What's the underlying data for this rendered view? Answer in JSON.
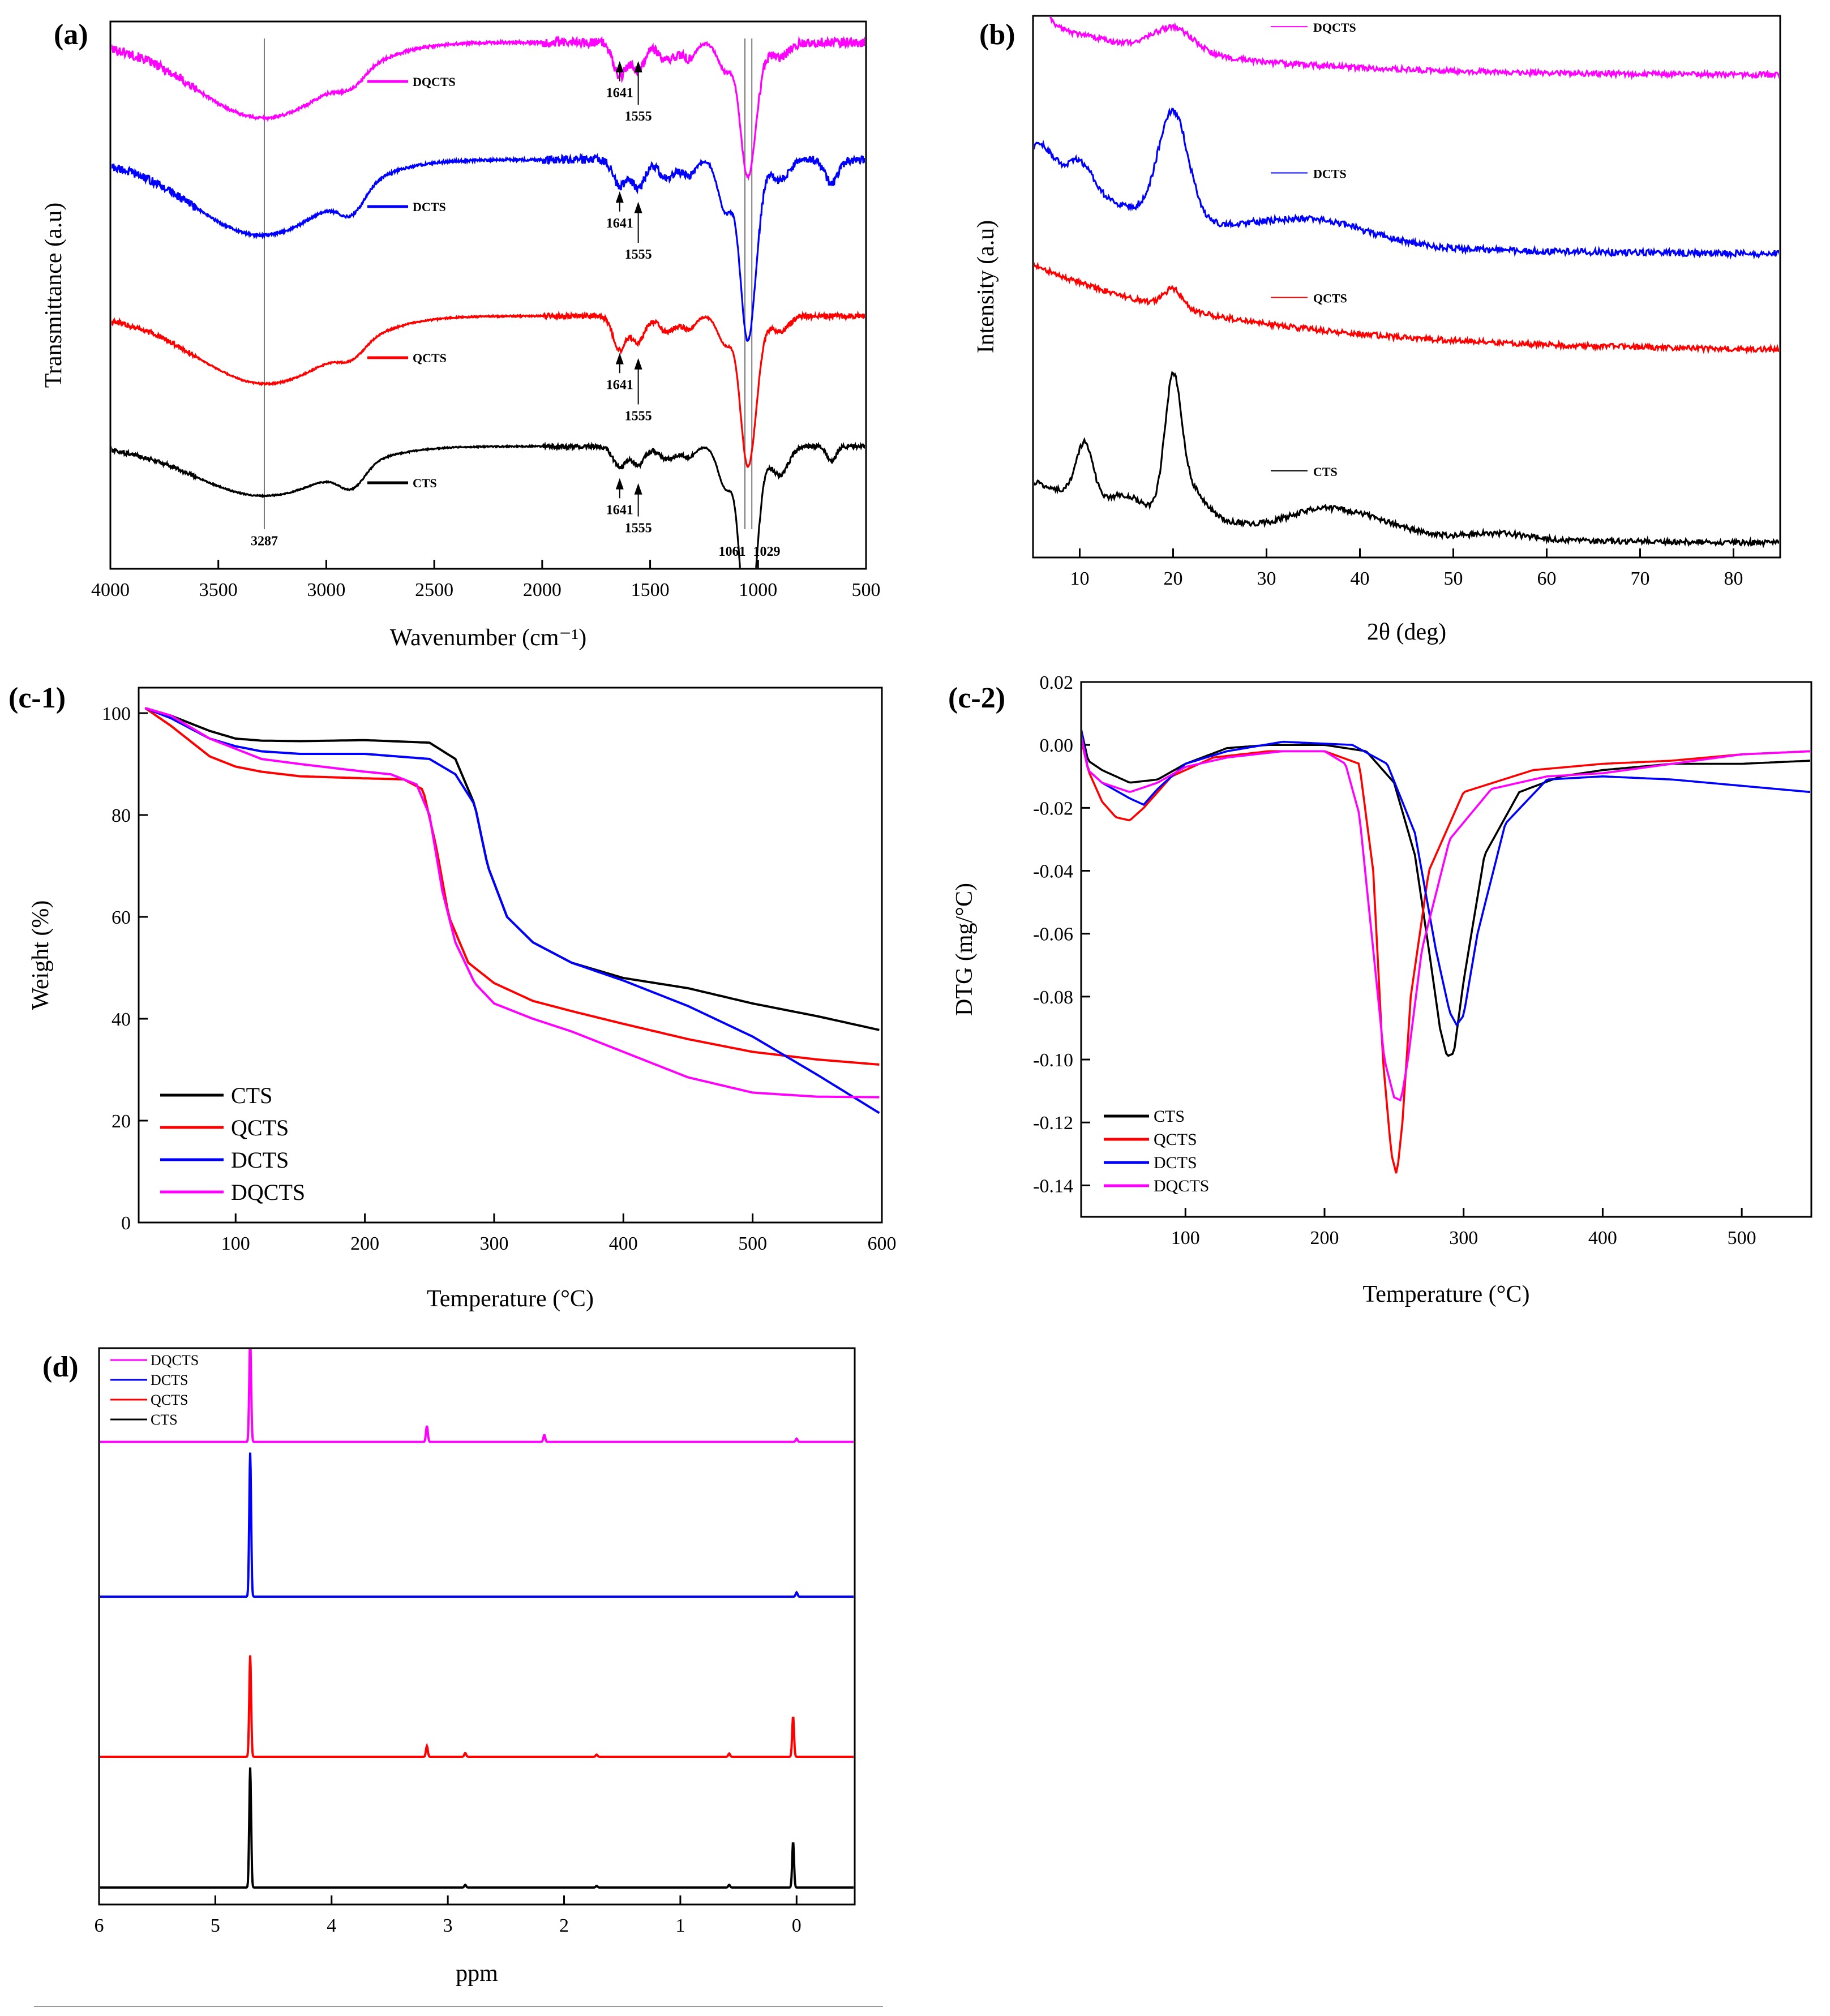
{
  "colors": {
    "CTS": "#000000",
    "QCTS": "#ff0000",
    "DCTS": "#0000ff",
    "DQCTS": "#ff00ff"
  },
  "chart_data": [
    {
      "id": "a",
      "panel_label": "(a)",
      "type": "line",
      "xlabel": "Wavenumber (cm⁻¹)",
      "ylabel": "Transmittance (a.u)",
      "xlim": [
        4000,
        500
      ],
      "ylim": [
        0,
        10.5
      ],
      "x_reversed": true,
      "xticks": [
        4000,
        3500,
        3000,
        2500,
        2000,
        1500,
        1000,
        500
      ],
      "legend_names": [
        "DQCTS",
        "DCTS",
        "QCTS",
        "CTS"
      ],
      "legend_positions": [
        {
          "name": "DQCTS",
          "x": 2600,
          "y": 9.35
        },
        {
          "name": "DCTS",
          "x": 2600,
          "y": 6.95
        },
        {
          "name": "QCTS",
          "x": 2600,
          "y": 4.05
        },
        {
          "name": "CTS",
          "x": 2600,
          "y": 1.65
        }
      ],
      "series": [
        {
          "name": "DQCTS",
          "baseline": 10.1,
          "noise": 0.09,
          "bands": [
            [
              3290,
              320,
              1.45
            ],
            [
              2880,
              60,
              0.25
            ],
            [
              1641,
              30,
              0.65
            ],
            [
              1555,
              30,
              0.55
            ],
            [
              1420,
              40,
              0.35
            ],
            [
              1320,
              30,
              0.3
            ],
            [
              1150,
              35,
              0.55
            ],
            [
              1061,
              30,
              1.4
            ],
            [
              1029,
              35,
              1.5
            ],
            [
              900,
              40,
              0.3
            ]
          ]
        },
        {
          "name": "DCTS",
          "baseline": 7.85,
          "noise": 0.08,
          "bands": [
            [
              3300,
              320,
              1.45
            ],
            [
              2880,
              60,
              0.45
            ],
            [
              1641,
              30,
              0.5
            ],
            [
              1555,
              30,
              0.55
            ],
            [
              1420,
              40,
              0.35
            ],
            [
              1320,
              30,
              0.3
            ],
            [
              1150,
              35,
              1.0
            ],
            [
              1061,
              30,
              1.9
            ],
            [
              1029,
              35,
              2.0
            ],
            [
              900,
              40,
              0.4
            ],
            [
              660,
              30,
              0.45
            ]
          ]
        },
        {
          "name": "QCTS",
          "baseline": 4.85,
          "noise": 0.05,
          "bands": [
            [
              3280,
              320,
              1.3
            ],
            [
              2880,
              60,
              0.25
            ],
            [
              1641,
              30,
              0.65
            ],
            [
              1555,
              30,
              0.5
            ],
            [
              1420,
              40,
              0.3
            ],
            [
              1320,
              30,
              0.25
            ],
            [
              1150,
              35,
              0.55
            ],
            [
              1061,
              30,
              1.5
            ],
            [
              1029,
              35,
              1.75
            ],
            [
              900,
              40,
              0.3
            ]
          ]
        },
        {
          "name": "CTS",
          "baseline": 2.35,
          "noise": 0.04,
          "bands": [
            [
              3290,
              320,
              0.95
            ],
            [
              2880,
              60,
              0.4
            ],
            [
              1641,
              30,
              0.4
            ],
            [
              1555,
              30,
              0.35
            ],
            [
              1420,
              40,
              0.25
            ],
            [
              1320,
              30,
              0.2
            ],
            [
              1150,
              35,
              0.8
            ],
            [
              1061,
              30,
              2.1
            ],
            [
              1029,
              35,
              2.15
            ],
            [
              900,
              40,
              0.55
            ],
            [
              660,
              20,
              0.3
            ]
          ]
        }
      ],
      "vlines": [
        3287,
        1061,
        1029
      ],
      "annotations": [
        {
          "text": "1641",
          "x": 1641,
          "y": 9.05,
          "arrow_to": 9.72
        },
        {
          "text": "1555",
          "x": 1555,
          "y": 8.6,
          "arrow_to": 9.72
        },
        {
          "text": "1641",
          "x": 1641,
          "y": 6.55,
          "arrow_to": 7.22
        },
        {
          "text": "1555",
          "x": 1555,
          "y": 5.95,
          "arrow_to": 7.02
        },
        {
          "text": "1641",
          "x": 1641,
          "y": 3.45,
          "arrow_to": 4.12
        },
        {
          "text": "1555",
          "x": 1555,
          "y": 2.85,
          "arrow_to": 4.02
        },
        {
          "text": "1641",
          "x": 1641,
          "y": 1.05,
          "arrow_to": 1.72
        },
        {
          "text": "1555",
          "x": 1555,
          "y": 0.7,
          "arrow_to": 1.62
        },
        {
          "text": "3287",
          "x": 3287,
          "y": 0.45
        },
        {
          "text": "1061",
          "x": 1120,
          "y": 0.25
        },
        {
          "text": "1029",
          "x": 960,
          "y": 0.25
        }
      ]
    },
    {
      "id": "b",
      "panel_label": "(b)",
      "type": "line",
      "xlabel": "2θ (deg)",
      "ylabel": "Intensity (a.u)",
      "xlim": [
        5,
        85
      ],
      "ylim": [
        0,
        10
      ],
      "xticks": [
        10,
        20,
        30,
        40,
        50,
        60,
        70,
        80
      ],
      "legend_names": [
        "DQCTS",
        "DCTS",
        "QCTS",
        "CTS"
      ],
      "legend_positions": [
        {
          "name": "DQCTS",
          "x": 35,
          "y": 9.8
        },
        {
          "name": "DCTS",
          "x": 35,
          "y": 7.1
        },
        {
          "name": "QCTS",
          "x": 35,
          "y": 4.8
        },
        {
          "name": "CTS",
          "x": 35,
          "y": 1.6
        }
      ],
      "series": [
        {
          "name": "DQCTS",
          "noise": 0.05,
          "decay": [
            8.9,
            1.0,
            18
          ],
          "peaks": [
            [
              20,
              2.2,
              0.45
            ],
            [
              5,
              1.2,
              0.55
            ]
          ]
        },
        {
          "name": "DCTS",
          "noise": 0.06,
          "decay": [
            5.6,
            1.6,
            16
          ],
          "peaks": [
            [
              10,
              1.5,
              0.55
            ],
            [
              20,
              1.6,
              2.0
            ],
            [
              35,
              6,
              0.4
            ],
            [
              6,
              1.2,
              0.5
            ]
          ]
        },
        {
          "name": "QCTS",
          "noise": 0.05,
          "decay": [
            3.8,
            1.6,
            22
          ],
          "peaks": [
            [
              20,
              1.0,
              0.35
            ]
          ]
        },
        {
          "name": "CTS",
          "noise": 0.05,
          "decay": [
            0.25,
            1.15,
            20
          ],
          "peaks": [
            [
              10.5,
              0.9,
              1.0
            ],
            [
              15,
              1.5,
              0.2
            ],
            [
              20,
              0.9,
              2.4
            ],
            [
              22,
              1.5,
              0.5
            ],
            [
              35,
              3,
              0.25
            ],
            [
              40,
              4,
              0.3
            ],
            [
              55,
              3,
              0.1
            ]
          ]
        }
      ]
    },
    {
      "id": "c1",
      "panel_label": "(c-1)",
      "type": "line",
      "xlabel": "Temperature (°C)",
      "ylabel": "Weight (%)",
      "xlim": [
        25,
        600
      ],
      "ylim": [
        0,
        105
      ],
      "xticks": [
        100,
        200,
        300,
        400,
        500,
        600
      ],
      "yticks": [
        0,
        20,
        40,
        60,
        80,
        100
      ],
      "legend_names": [
        "CTS",
        "QCTS",
        "DCTS",
        "DQCTS"
      ],
      "series": [
        {
          "name": "CTS",
          "x": [
            30,
            50,
            80,
            100,
            120,
            150,
            200,
            250,
            270,
            285,
            295,
            310,
            330,
            360,
            400,
            450,
            500,
            550,
            598
          ],
          "y": [
            101,
            99.5,
            96.5,
            95,
            94.6,
            94.5,
            94.7,
            94.2,
            91,
            82,
            70,
            60,
            55,
            51,
            48,
            46,
            43,
            40.5,
            37.8
          ]
        },
        {
          "name": "QCTS",
          "x": [
            30,
            50,
            80,
            100,
            120,
            150,
            200,
            230,
            245,
            255,
            265,
            280,
            300,
            330,
            360,
            400,
            450,
            500,
            550,
            598
          ],
          "y": [
            101,
            97.5,
            91.5,
            89.5,
            88.5,
            87.6,
            87.2,
            87,
            85,
            74,
            60,
            51,
            47,
            43.5,
            41.5,
            39,
            36,
            33.5,
            32,
            31
          ]
        },
        {
          "name": "DCTS",
          "x": [
            30,
            50,
            80,
            100,
            120,
            150,
            200,
            250,
            270,
            285,
            295,
            310,
            330,
            360,
            400,
            450,
            500,
            550,
            598
          ],
          "y": [
            101,
            99,
            95,
            93.5,
            92.5,
            92,
            92,
            91,
            88,
            82,
            70,
            60,
            55,
            51,
            47.5,
            42.5,
            36.5,
            29,
            21.5
          ]
        },
        {
          "name": "DQCTS",
          "x": [
            30,
            50,
            80,
            100,
            120,
            150,
            200,
            220,
            240,
            250,
            260,
            270,
            285,
            300,
            330,
            360,
            400,
            450,
            500,
            550,
            598
          ],
          "y": [
            101,
            99.5,
            95,
            93,
            91,
            90,
            88.5,
            88,
            86,
            80,
            65,
            55,
            47,
            43,
            40,
            37.5,
            33.5,
            28.5,
            25.5,
            24.7,
            24.6
          ]
        }
      ]
    },
    {
      "id": "c2",
      "panel_label": "(c-2)",
      "type": "line",
      "xlabel": "Temperature (°C)",
      "ylabel": "DTG (mg/°C)",
      "xlim": [
        25,
        550
      ],
      "ylim": [
        -0.15,
        0.02
      ],
      "xticks": [
        100,
        200,
        300,
        400,
        500
      ],
      "yticks": [
        0.02,
        0.0,
        -0.02,
        -0.04,
        -0.06,
        -0.08,
        -0.1,
        -0.12,
        -0.14
      ],
      "ytick_labels": [
        "0.02",
        "0.00",
        "-0.02",
        "-0.04",
        "-0.06",
        "-0.08",
        "-0.10",
        "-0.12",
        "-0.14"
      ],
      "legend_names": [
        "CTS",
        "QCTS",
        "DCTS",
        "DQCTS"
      ],
      "series": [
        {
          "name": "CTS",
          "x": [
            25,
            30,
            40,
            60,
            80,
            100,
            130,
            160,
            200,
            230,
            250,
            265,
            275,
            283,
            288,
            293,
            300,
            315,
            340,
            370,
            400,
            450,
            500,
            550
          ],
          "y": [
            0.005,
            -0.005,
            -0.008,
            -0.012,
            -0.011,
            -0.006,
            -0.001,
            0.0,
            0.0,
            -0.002,
            -0.012,
            -0.035,
            -0.065,
            -0.09,
            -0.099,
            -0.098,
            -0.075,
            -0.035,
            -0.015,
            -0.01,
            -0.008,
            -0.006,
            -0.006,
            -0.005
          ]
        },
        {
          "name": "QCTS",
          "x": [
            25,
            30,
            40,
            50,
            60,
            70,
            90,
            120,
            160,
            200,
            225,
            235,
            242,
            248,
            252,
            256,
            262,
            275,
            300,
            350,
            400,
            450,
            500,
            550
          ],
          "y": [
            0.002,
            -0.008,
            -0.018,
            -0.023,
            -0.024,
            -0.02,
            -0.01,
            -0.004,
            -0.002,
            -0.002,
            -0.006,
            -0.04,
            -0.1,
            -0.13,
            -0.137,
            -0.12,
            -0.08,
            -0.04,
            -0.015,
            -0.008,
            -0.006,
            -0.005,
            -0.003,
            -0.002
          ]
        },
        {
          "name": "DCTS",
          "x": [
            25,
            30,
            40,
            60,
            70,
            80,
            100,
            130,
            170,
            220,
            245,
            265,
            280,
            290,
            295,
            300,
            310,
            330,
            360,
            400,
            450,
            500,
            550
          ],
          "y": [
            0.005,
            -0.008,
            -0.012,
            -0.017,
            -0.019,
            -0.014,
            -0.006,
            -0.002,
            0.001,
            0.0,
            -0.006,
            -0.028,
            -0.065,
            -0.085,
            -0.089,
            -0.086,
            -0.06,
            -0.025,
            -0.011,
            -0.01,
            -0.011,
            -0.013,
            -0.015
          ]
        },
        {
          "name": "DQCTS",
          "x": [
            25,
            30,
            40,
            60,
            80,
            100,
            130,
            170,
            200,
            215,
            225,
            235,
            243,
            250,
            255,
            260,
            270,
            290,
            320,
            360,
            400,
            450,
            500,
            550
          ],
          "y": [
            0.003,
            -0.008,
            -0.012,
            -0.015,
            -0.012,
            -0.007,
            -0.004,
            -0.002,
            -0.002,
            -0.006,
            -0.022,
            -0.065,
            -0.1,
            -0.112,
            -0.113,
            -0.1,
            -0.065,
            -0.03,
            -0.014,
            -0.01,
            -0.009,
            -0.006,
            -0.003,
            -0.002
          ]
        }
      ]
    },
    {
      "id": "d",
      "panel_label": "(d)",
      "type": "line",
      "xlabel": "ppm",
      "ylabel": "",
      "xlim": [
        6,
        -0.5
      ],
      "ylim": [
        0,
        10
      ],
      "x_reversed": true,
      "xticks": [
        6,
        5,
        4,
        3,
        2,
        1,
        0
      ],
      "legend_names": [
        "DQCTS",
        "DCTS",
        "QCTS",
        "CTS"
      ],
      "series": [
        {
          "name": "DQCTS",
          "baseline": 8.35,
          "peaks": [
            [
              4.7,
              1.95
            ],
            [
              3.18,
              0.3
            ],
            [
              2.17,
              0.13
            ],
            [
              0.0,
              0.06
            ]
          ]
        },
        {
          "name": "DCTS",
          "baseline": 5.45,
          "peaks": [
            [
              4.7,
              2.7
            ],
            [
              0.0,
              0.08
            ]
          ]
        },
        {
          "name": "QCTS",
          "baseline": 2.45,
          "peaks": [
            [
              4.7,
              1.9
            ],
            [
              3.18,
              0.2
            ],
            [
              2.85,
              0.07
            ],
            [
              1.72,
              0.04
            ],
            [
              0.58,
              0.06
            ],
            [
              0.03,
              0.75
            ]
          ]
        },
        {
          "name": "CTS",
          "baseline": 0.0,
          "peaks": [
            [
              4.7,
              2.25
            ],
            [
              2.85,
              0.05
            ],
            [
              1.72,
              0.03
            ],
            [
              0.58,
              0.05
            ],
            [
              0.03,
              0.85
            ]
          ]
        }
      ]
    }
  ]
}
